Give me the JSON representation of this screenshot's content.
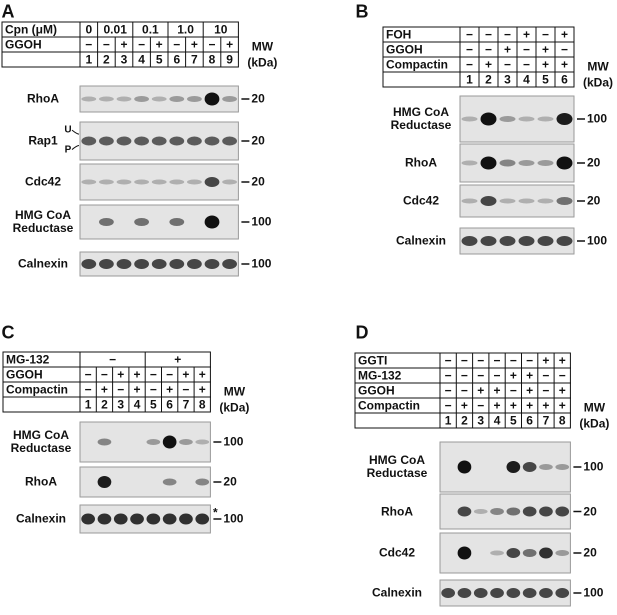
{
  "panels": [
    {
      "label": "A",
      "header_rows": [
        {
          "label": "Cpn (μM)",
          "cells": [
            "0",
            "0.01",
            "0.1",
            "1.0",
            "10"
          ]
        },
        {
          "label": "GGOH",
          "cells": [
            "−",
            "−",
            "+",
            "−",
            "+",
            "−",
            "+",
            "−",
            "+"
          ]
        }
      ],
      "lanes": [
        1,
        2,
        3,
        4,
        5,
        6,
        7,
        8,
        9
      ],
      "mw": "MW",
      "mw_unit": "(kDa)",
      "blots": [
        {
          "label": "RhoA",
          "marker": "20"
        },
        {
          "label": "Rap1",
          "sublabels": [
            "U",
            "P"
          ],
          "marker": "20"
        },
        {
          "label": "Cdc42",
          "marker": "20"
        },
        {
          "label": "HMG CoA Reductase",
          "marker": "100"
        },
        {
          "label": "Calnexin",
          "marker": "100"
        }
      ]
    },
    {
      "label": "B",
      "header_rows": [
        {
          "label": "FOH",
          "cells": [
            "−",
            "−",
            "−",
            "+",
            "−",
            "+"
          ]
        },
        {
          "label": "GGOH",
          "cells": [
            "−",
            "−",
            "+",
            "−",
            "+",
            "−"
          ]
        },
        {
          "label": "Compactin",
          "cells": [
            "−",
            "+",
            "−",
            "−",
            "+",
            "+"
          ]
        }
      ],
      "lanes": [
        1,
        2,
        3,
        4,
        5,
        6
      ],
      "mw": "MW",
      "mw_unit": "(kDa)",
      "blots": [
        {
          "label": "HMG CoA Reductase",
          "marker": "100"
        },
        {
          "label": "RhoA",
          "marker": "20"
        },
        {
          "label": "Cdc42",
          "marker": "20"
        },
        {
          "label": "Calnexin",
          "marker": "100"
        }
      ]
    },
    {
      "label": "C",
      "header_rows": [
        {
          "label": "MG-132",
          "cells": [
            "−",
            "+"
          ]
        },
        {
          "label": "GGOH",
          "cells": [
            "−",
            "−",
            "+",
            "+",
            "−",
            "−",
            "+",
            "+"
          ]
        },
        {
          "label": "Compactin",
          "cells": [
            "−",
            "+",
            "−",
            "+",
            "−",
            "+",
            "−",
            "+"
          ]
        }
      ],
      "lanes": [
        1,
        2,
        3,
        4,
        5,
        6,
        7,
        8
      ],
      "mw": "MW",
      "mw_unit": "(kDa)",
      "blots": [
        {
          "label": "HMG CoA Reductase",
          "marker": "100"
        },
        {
          "label": "RhoA",
          "marker": "20"
        },
        {
          "label": "Calnexin",
          "annotation": "*",
          "marker": "100"
        }
      ]
    },
    {
      "label": "D",
      "header_rows": [
        {
          "label": "GGTI",
          "cells": [
            "−",
            "−",
            "−",
            "−",
            "−",
            "−",
            "+",
            "+"
          ]
        },
        {
          "label": "MG-132",
          "cells": [
            "−",
            "−",
            "−",
            "−",
            "+",
            "+",
            "−",
            "−"
          ]
        },
        {
          "label": "GGOH",
          "cells": [
            "−",
            "−",
            "+",
            "+",
            "−",
            "+",
            "−",
            "+"
          ]
        },
        {
          "label": "Compactin",
          "cells": [
            "−",
            "+",
            "−",
            "+",
            "+",
            "+",
            "+",
            "+"
          ]
        }
      ],
      "lanes": [
        1,
        2,
        3,
        4,
        5,
        6,
        7,
        8
      ],
      "mw": "MW",
      "mw_unit": "(kDa)",
      "blots": [
        {
          "label": "HMG CoA Reductase",
          "marker": "100"
        },
        {
          "label": "RhoA",
          "marker": "20"
        },
        {
          "label": "Cdc42",
          "marker": "20"
        },
        {
          "label": "Calnexin",
          "marker": "100"
        }
      ]
    }
  ]
}
